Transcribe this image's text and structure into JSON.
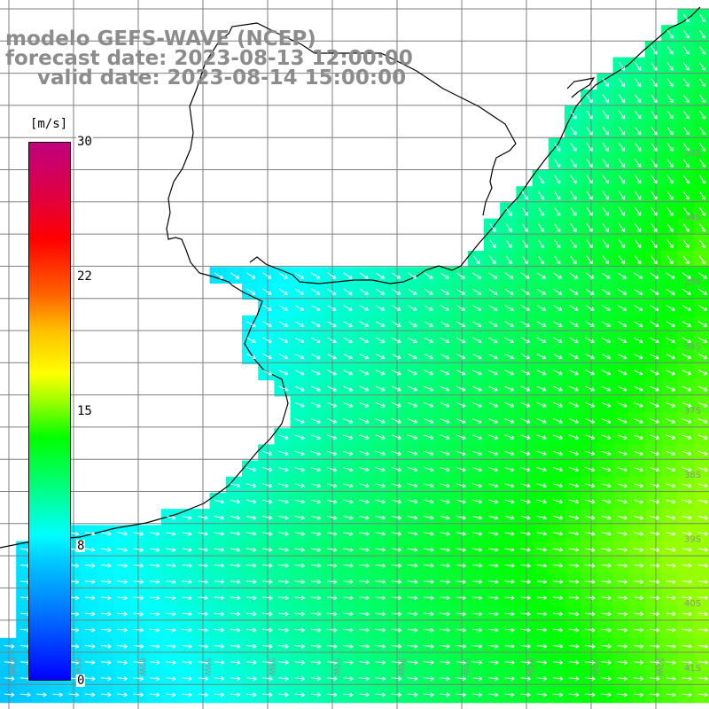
{
  "title": {
    "model": "modelo GEFS-WAVE (NCEP)",
    "forecast": "forecast date: 2023-08-13 12:00:00",
    "valid": "valid date: 2023-08-14 15:00:00"
  },
  "colorbar": {
    "unit": "[m/s]",
    "ticks": [
      "30",
      "22",
      "15",
      "8",
      "0"
    ],
    "vmin": 0,
    "vmax": 30,
    "colors": {
      "min": "#0000ff",
      "low": "#00ffff",
      "mid": "#00ff00",
      "high": "#ffff00",
      "higher": "#ff0000",
      "max": "#c0007e"
    }
  },
  "map": {
    "variable": "wind speed with direction arrows",
    "land_color": "#ffffff",
    "grid_color": "#7f7f7f",
    "coast_color": "#000000",
    "arrow_color": "#ffffff",
    "lat_labels": [
      "33S",
      "34S",
      "35S",
      "36S",
      "37S",
      "38S",
      "39S",
      "40S",
      "41S"
    ],
    "lon_labels": [
      "62W",
      "61W",
      "60W",
      "59W",
      "58W",
      "57W",
      "56W",
      "55W",
      "54W",
      "53W",
      "52W"
    ]
  }
}
